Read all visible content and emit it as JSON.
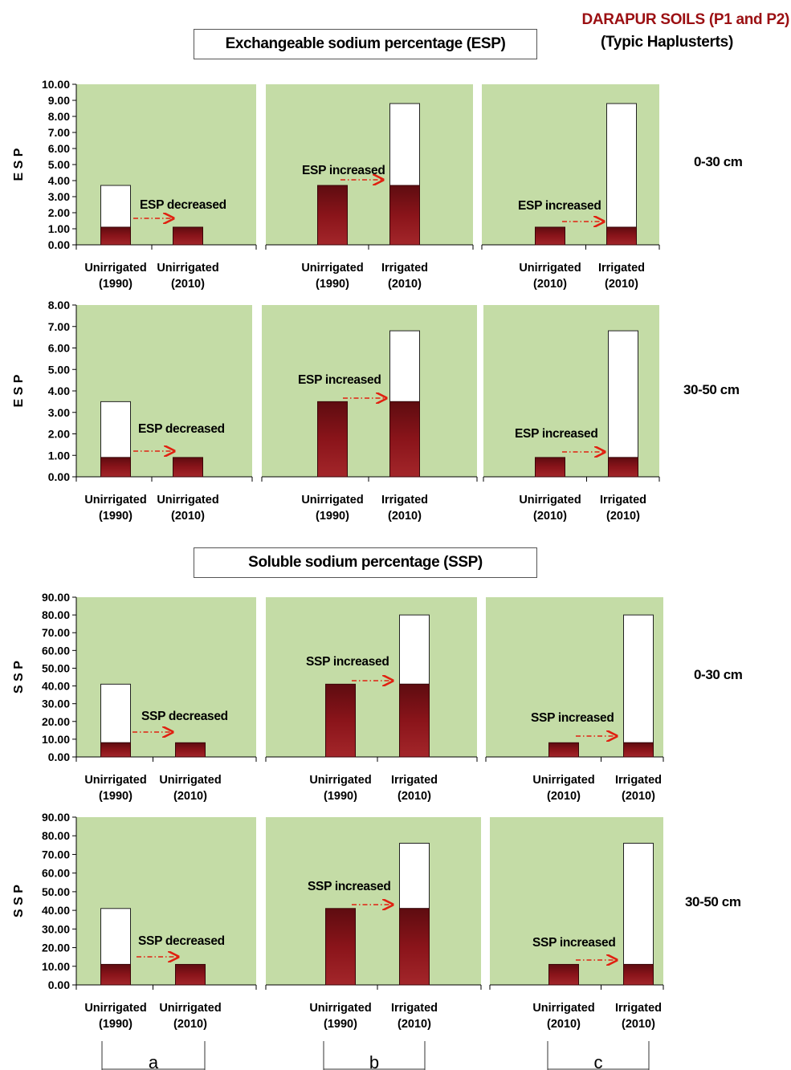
{
  "header": {
    "title_red": "DARAPUR SOILS (P1 and P2)",
    "subtitle": "(Typic Haplusterts)"
  },
  "sections": {
    "esp_title": "Exchangeable sodium percentage (ESP)",
    "ssp_title": "Soluble sodium percentage (SSP)"
  },
  "depths": [
    "0-30 cm",
    "30-50 cm",
    "0-30 cm",
    "30-50 cm"
  ],
  "columns": [
    "a",
    "b",
    "c"
  ],
  "colors": {
    "plot_bg": "#c4dca6",
    "bar_dark": "#7d1016",
    "bar_light": "#ffffff",
    "arrow": "#e02010",
    "header_red": "#9b0f12"
  },
  "chart_data": [
    {
      "type": "bar",
      "row": 1,
      "column": "a",
      "ylabel": "ESP",
      "ylim": [
        0,
        10
      ],
      "yticks": [
        "0.00",
        "1.00",
        "2.00",
        "3.00",
        "4.00",
        "5.00",
        "6.00",
        "7.00",
        "8.00",
        "9.00",
        "10.00"
      ],
      "categories": [
        "Unirrigated\n(1990)",
        "Unirrigated\n(2010)"
      ],
      "total": [
        3.7,
        1.1
      ],
      "base": [
        1.1,
        1.1
      ],
      "annotation": "ESP decreased"
    },
    {
      "type": "bar",
      "row": 1,
      "column": "b",
      "ylabel": "ESP",
      "ylim": [
        0,
        10
      ],
      "categories": [
        "Unirrigated\n(1990)",
        "Irrigated\n(2010)"
      ],
      "total": [
        3.7,
        8.8
      ],
      "base": [
        3.7,
        3.7
      ],
      "annotation": "ESP increased"
    },
    {
      "type": "bar",
      "row": 1,
      "column": "c",
      "ylabel": "ESP",
      "ylim": [
        0,
        10
      ],
      "categories": [
        "Unirrigated\n(2010)",
        "Irrigated\n(2010)"
      ],
      "total": [
        1.1,
        8.8
      ],
      "base": [
        1.1,
        1.1
      ],
      "annotation": "ESP increased"
    },
    {
      "type": "bar",
      "row": 2,
      "column": "a",
      "ylabel": "ESP",
      "ylim": [
        0,
        8
      ],
      "yticks": [
        "0.00",
        "1.00",
        "2.00",
        "3.00",
        "4.00",
        "5.00",
        "6.00",
        "7.00",
        "8.00"
      ],
      "categories": [
        "Unirrigated\n(1990)",
        "Unirrigated\n(2010)"
      ],
      "total": [
        3.5,
        0.9
      ],
      "base": [
        0.9,
        0.9
      ],
      "annotation": "ESP decreased"
    },
    {
      "type": "bar",
      "row": 2,
      "column": "b",
      "ylabel": "ESP",
      "ylim": [
        0,
        8
      ],
      "categories": [
        "Unirrigated\n(1990)",
        "Irrigated\n(2010)"
      ],
      "total": [
        3.5,
        6.8
      ],
      "base": [
        3.5,
        3.5
      ],
      "annotation": "ESP increased"
    },
    {
      "type": "bar",
      "row": 2,
      "column": "c",
      "ylabel": "ESP",
      "ylim": [
        0,
        8
      ],
      "categories": [
        "Unirrigated\n(2010)",
        "Irrigated\n(2010)"
      ],
      "total": [
        0.9,
        6.8
      ],
      "base": [
        0.9,
        0.9
      ],
      "annotation": "ESP increased"
    },
    {
      "type": "bar",
      "row": 3,
      "column": "a",
      "ylabel": "SSP",
      "ylim": [
        0,
        90
      ],
      "yticks": [
        "0.00",
        "10.00",
        "20.00",
        "30.00",
        "40.00",
        "50.00",
        "60.00",
        "70.00",
        "80.00",
        "90.00"
      ],
      "categories": [
        "Unirrigated\n(1990)",
        "Unirrigated\n(2010)"
      ],
      "total": [
        41,
        8
      ],
      "base": [
        8,
        8
      ],
      "annotation": "SSP decreased"
    },
    {
      "type": "bar",
      "row": 3,
      "column": "b",
      "ylabel": "SSP",
      "ylim": [
        0,
        90
      ],
      "categories": [
        "Unirrigated\n(1990)",
        "Irrigated\n(2010)"
      ],
      "total": [
        41,
        80
      ],
      "base": [
        41,
        41
      ],
      "annotation": "SSP increased"
    },
    {
      "type": "bar",
      "row": 3,
      "column": "c",
      "ylabel": "SSP",
      "ylim": [
        0,
        90
      ],
      "categories": [
        "Unirrigated\n(2010)",
        "Irrigated\n(2010)"
      ],
      "total": [
        8,
        80
      ],
      "base": [
        8,
        8
      ],
      "annotation": "SSP increased"
    },
    {
      "type": "bar",
      "row": 4,
      "column": "a",
      "ylabel": "SSP",
      "ylim": [
        0,
        90
      ],
      "yticks": [
        "0.00",
        "10.00",
        "20.00",
        "30.00",
        "40.00",
        "50.00",
        "60.00",
        "70.00",
        "80.00",
        "90.00"
      ],
      "categories": [
        "Unirrigated\n(1990)",
        "Unirrigated\n(2010)"
      ],
      "total": [
        41,
        11
      ],
      "base": [
        11,
        11
      ],
      "annotation": "SSP decreased"
    },
    {
      "type": "bar",
      "row": 4,
      "column": "b",
      "ylabel": "SSP",
      "ylim": [
        0,
        90
      ],
      "categories": [
        "Unirrigated\n(1990)",
        "Irrigated\n(2010)"
      ],
      "total": [
        41,
        76
      ],
      "base": [
        41,
        41
      ],
      "annotation": "SSP increased"
    },
    {
      "type": "bar",
      "row": 4,
      "column": "c",
      "ylabel": "SSP",
      "ylim": [
        0,
        90
      ],
      "categories": [
        "Unirrigated\n(2010)",
        "Irrigated\n(2010)"
      ],
      "total": [
        11,
        76
      ],
      "base": [
        11,
        11
      ],
      "annotation": "SSP increased"
    }
  ]
}
